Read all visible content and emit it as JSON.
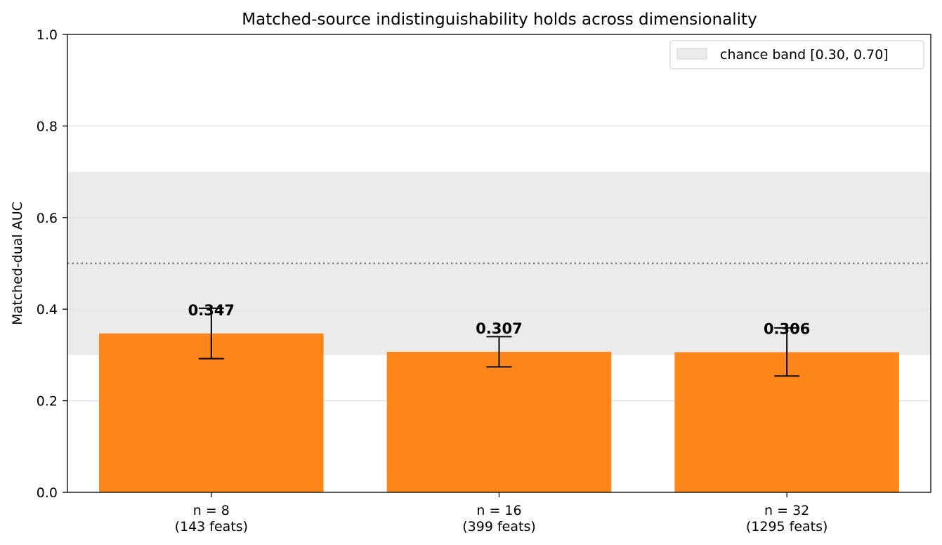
{
  "chart_data": {
    "type": "bar",
    "title": "Matched-source indistinguishability holds across dimensionality",
    "xlabel": "",
    "ylabel": "Matched-dual AUC",
    "ylim": [
      0.0,
      1.0
    ],
    "yticks": [
      "0.0",
      "0.2",
      "0.4",
      "0.6",
      "0.8",
      "1.0"
    ],
    "categories": [
      {
        "line1": "n = 8",
        "line2": "(143 feats)"
      },
      {
        "line1": "n = 16",
        "line2": "(399 feats)"
      },
      {
        "line1": "n = 32",
        "line2": "(1295 feats)"
      }
    ],
    "values": [
      0.347,
      0.307,
      0.306
    ],
    "value_labels": [
      "0.347",
      "0.307",
      "0.306"
    ],
    "error_low": [
      0.292,
      0.274,
      0.254
    ],
    "error_high": [
      0.402,
      0.34,
      0.359
    ],
    "chance_band": {
      "low": 0.3,
      "high": 0.7,
      "label": "chance band [0.30, 0.70]"
    },
    "reference_line": 0.5,
    "grid": true,
    "legend_position": "top-right",
    "colors": {
      "bar": "#ff7f0e",
      "band": "#e0e0e0",
      "reference_line": "#808080",
      "grid": "#dddddd",
      "error_bar": "#000000"
    }
  }
}
